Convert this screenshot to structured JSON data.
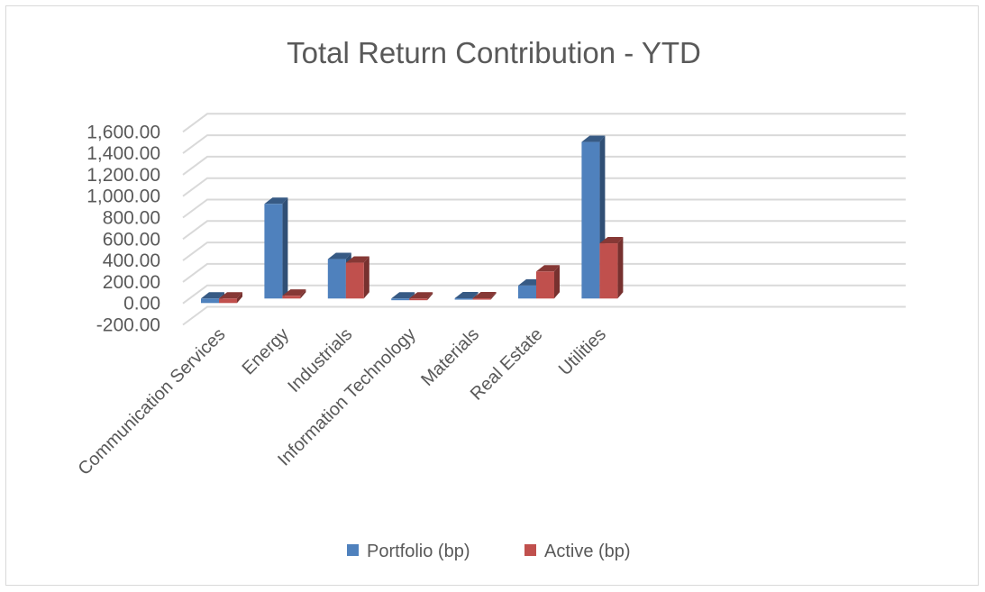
{
  "chart_data": {
    "type": "bar",
    "subtype": "3d-clustered-column",
    "title": "Total Return Contribution - YTD",
    "xlabel": "",
    "ylabel": "",
    "categories": [
      "Communication Services",
      "Energy",
      "Industrials",
      "Information Technology",
      "Materials",
      "Real Estate",
      "Utilities"
    ],
    "series": [
      {
        "name": "Portfolio (bp)",
        "color": "#4f81bd",
        "values": [
          -40,
          840,
          350,
          -15,
          2,
          115,
          1390
        ]
      },
      {
        "name": "Active (bp)",
        "color": "#c0504d",
        "values": [
          -40,
          25,
          318,
          -15,
          2,
          240,
          490
        ]
      }
    ],
    "ylim": [
      -200,
      1600
    ],
    "yticks": [
      "-200.00",
      "0.00",
      "200.00",
      "400.00",
      "600.00",
      "800.00",
      "1,000.00",
      "1,200.00",
      "1,400.00",
      "1,600.00"
    ],
    "grid": true,
    "legend": "bottom"
  }
}
